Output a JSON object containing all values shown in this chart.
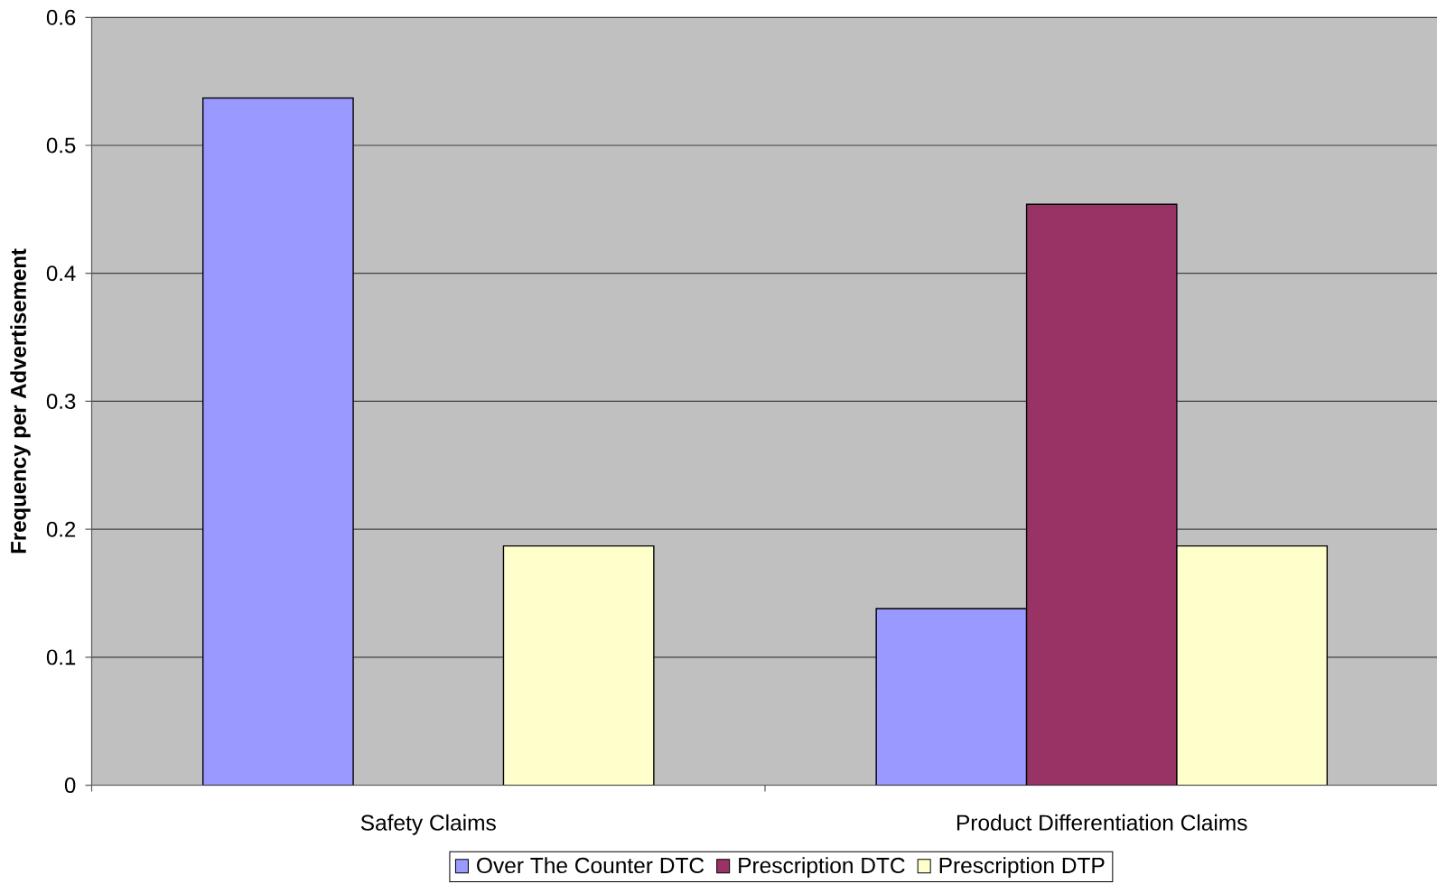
{
  "chart_data": {
    "type": "bar",
    "ylabel": "Frequency per Advertisement",
    "categories": [
      "Safety Claims",
      "Product Differentiation Claims"
    ],
    "series": [
      {
        "name": "Over The Counter DTC",
        "color": "#9999ff",
        "values": [
          0.537,
          0.138
        ]
      },
      {
        "name": "Prescription DTC",
        "color": "#993366",
        "values": [
          null,
          0.454
        ]
      },
      {
        "name": "Prescription DTP",
        "color": "#ffffcc",
        "values": [
          0.187,
          0.187
        ]
      }
    ],
    "ylim": [
      0,
      0.6
    ],
    "yticks": [
      0,
      0.1,
      0.2,
      0.3,
      0.4,
      0.5,
      0.6
    ],
    "grid": "y",
    "legend": "bottom"
  }
}
